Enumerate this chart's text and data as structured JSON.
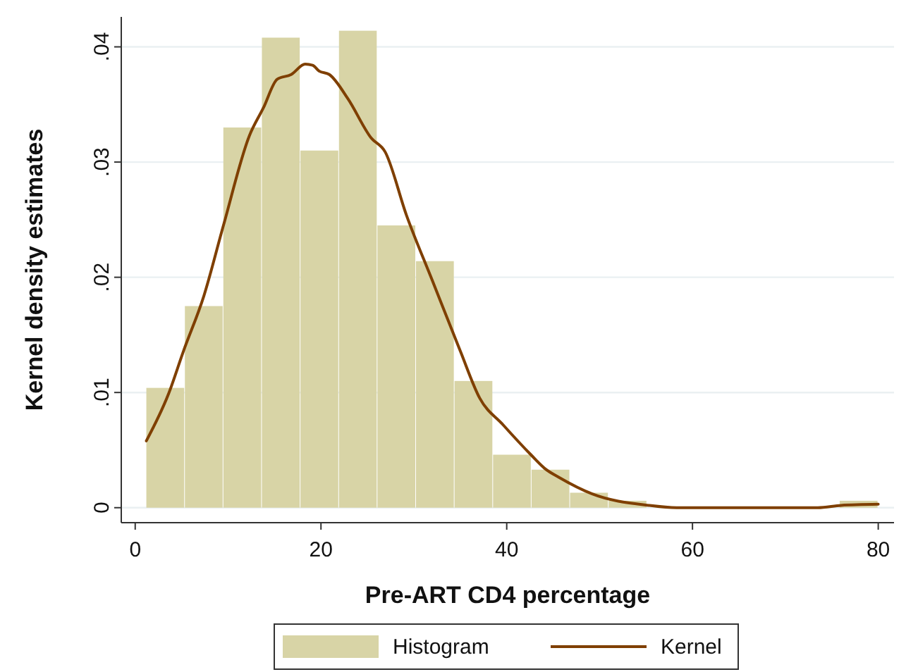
{
  "chart_data": {
    "type": "histogram",
    "xlabel": "Pre-ART CD4 percentage",
    "ylabel": "Kernel density estimates",
    "xlim": [
      -1.5,
      81.7
    ],
    "ylim": [
      -0.0013,
      0.0426
    ],
    "xticks": [
      0,
      20,
      40,
      60,
      80
    ],
    "yticks": [
      {
        "value": 0,
        "label": "0"
      },
      {
        "value": 0.01,
        "label": ".01"
      },
      {
        "value": 0.02,
        "label": ".02"
      },
      {
        "value": 0.03,
        "label": ".03"
      },
      {
        "value": 0.04,
        "label": ".04"
      }
    ],
    "grid": "y",
    "legend": "bottom",
    "series": [
      {
        "name": "Histogram",
        "color": "#d8d4a6",
        "bins": [
          1.2,
          5.35,
          9.49,
          13.64,
          17.79,
          21.94,
          26.08,
          30.23,
          34.38,
          38.53,
          42.67,
          46.82,
          50.97,
          55.12,
          59.26,
          63.41,
          67.56,
          71.71,
          75.85,
          80.0
        ],
        "values": [
          0.0104,
          0.0175,
          0.033,
          0.0408,
          0.031,
          0.0414,
          0.0245,
          0.0214,
          0.011,
          0.0046,
          0.0033,
          0.0013,
          0.0006,
          0,
          0,
          0,
          0,
          0,
          0.0006
        ]
      },
      {
        "type": "line",
        "name": "Kernel",
        "color": "#7f3f00",
        "x": [
          1.2,
          3.6,
          5.2,
          7.4,
          9.5,
          12.3,
          13.8,
          15.3,
          16.8,
          18.3,
          19.1,
          19.8,
          20.9,
          22.9,
          25.4,
          26.9,
          29.2,
          32.0,
          35.0,
          37.1,
          39.6,
          42.6,
          44.1,
          45.7,
          49.2,
          55.3,
          58.3,
          73.5,
          76.0,
          80.0
        ],
        "values": [
          0.0058,
          0.0099,
          0.0136,
          0.0184,
          0.0245,
          0.0323,
          0.0347,
          0.0372,
          0.0376,
          0.0385,
          0.0384,
          0.0379,
          0.0376,
          0.0355,
          0.0321,
          0.0309,
          0.0254,
          0.0197,
          0.0136,
          0.0095,
          0.0072,
          0.0046,
          0.0034,
          0.0026,
          0.0012,
          0.0002,
          0,
          0,
          0.0002,
          0.0003
        ]
      }
    ]
  }
}
